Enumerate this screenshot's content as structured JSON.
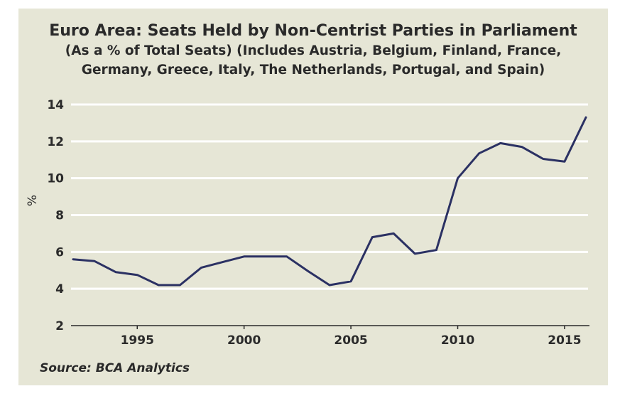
{
  "chart_data": {
    "type": "line",
    "title": "Euro Area: Seats Held by Non-Centrist Parties in Parliament",
    "subtitle_lines": [
      "(As a % of Total Seats) (Includes Austria, Belgium, Finland, France,",
      "Germany, Greece, Italy, The Netherlands, Portugal, and Spain)"
    ],
    "ylabel": "%",
    "xlabel": "",
    "xlim": [
      1991.9,
      2016.1
    ],
    "ylim": [
      2,
      14
    ],
    "x_ticks": [
      1995,
      2000,
      2005,
      2010,
      2015
    ],
    "y_ticks": [
      2,
      4,
      6,
      8,
      10,
      12,
      14
    ],
    "grid": true,
    "line_color": "#2b3163",
    "series": [
      {
        "x": [
          1992,
          1993,
          1994,
          1995,
          1996,
          1997,
          1998,
          1999,
          2000,
          2001,
          2002,
          2003,
          2004,
          2005,
          2006,
          2007,
          2008,
          2009,
          2010,
          2011,
          2012,
          2013,
          2014,
          2015,
          2016
        ],
        "values": [
          5.6,
          5.5,
          4.9,
          4.75,
          4.2,
          4.2,
          5.15,
          5.45,
          5.75,
          5.75,
          5.75,
          4.95,
          4.2,
          4.4,
          6.8,
          7.0,
          5.9,
          6.1,
          10.0,
          11.35,
          11.9,
          11.7,
          11.05,
          10.9,
          13.3
        ]
      }
    ],
    "source": "Source: BCA Analytics"
  }
}
